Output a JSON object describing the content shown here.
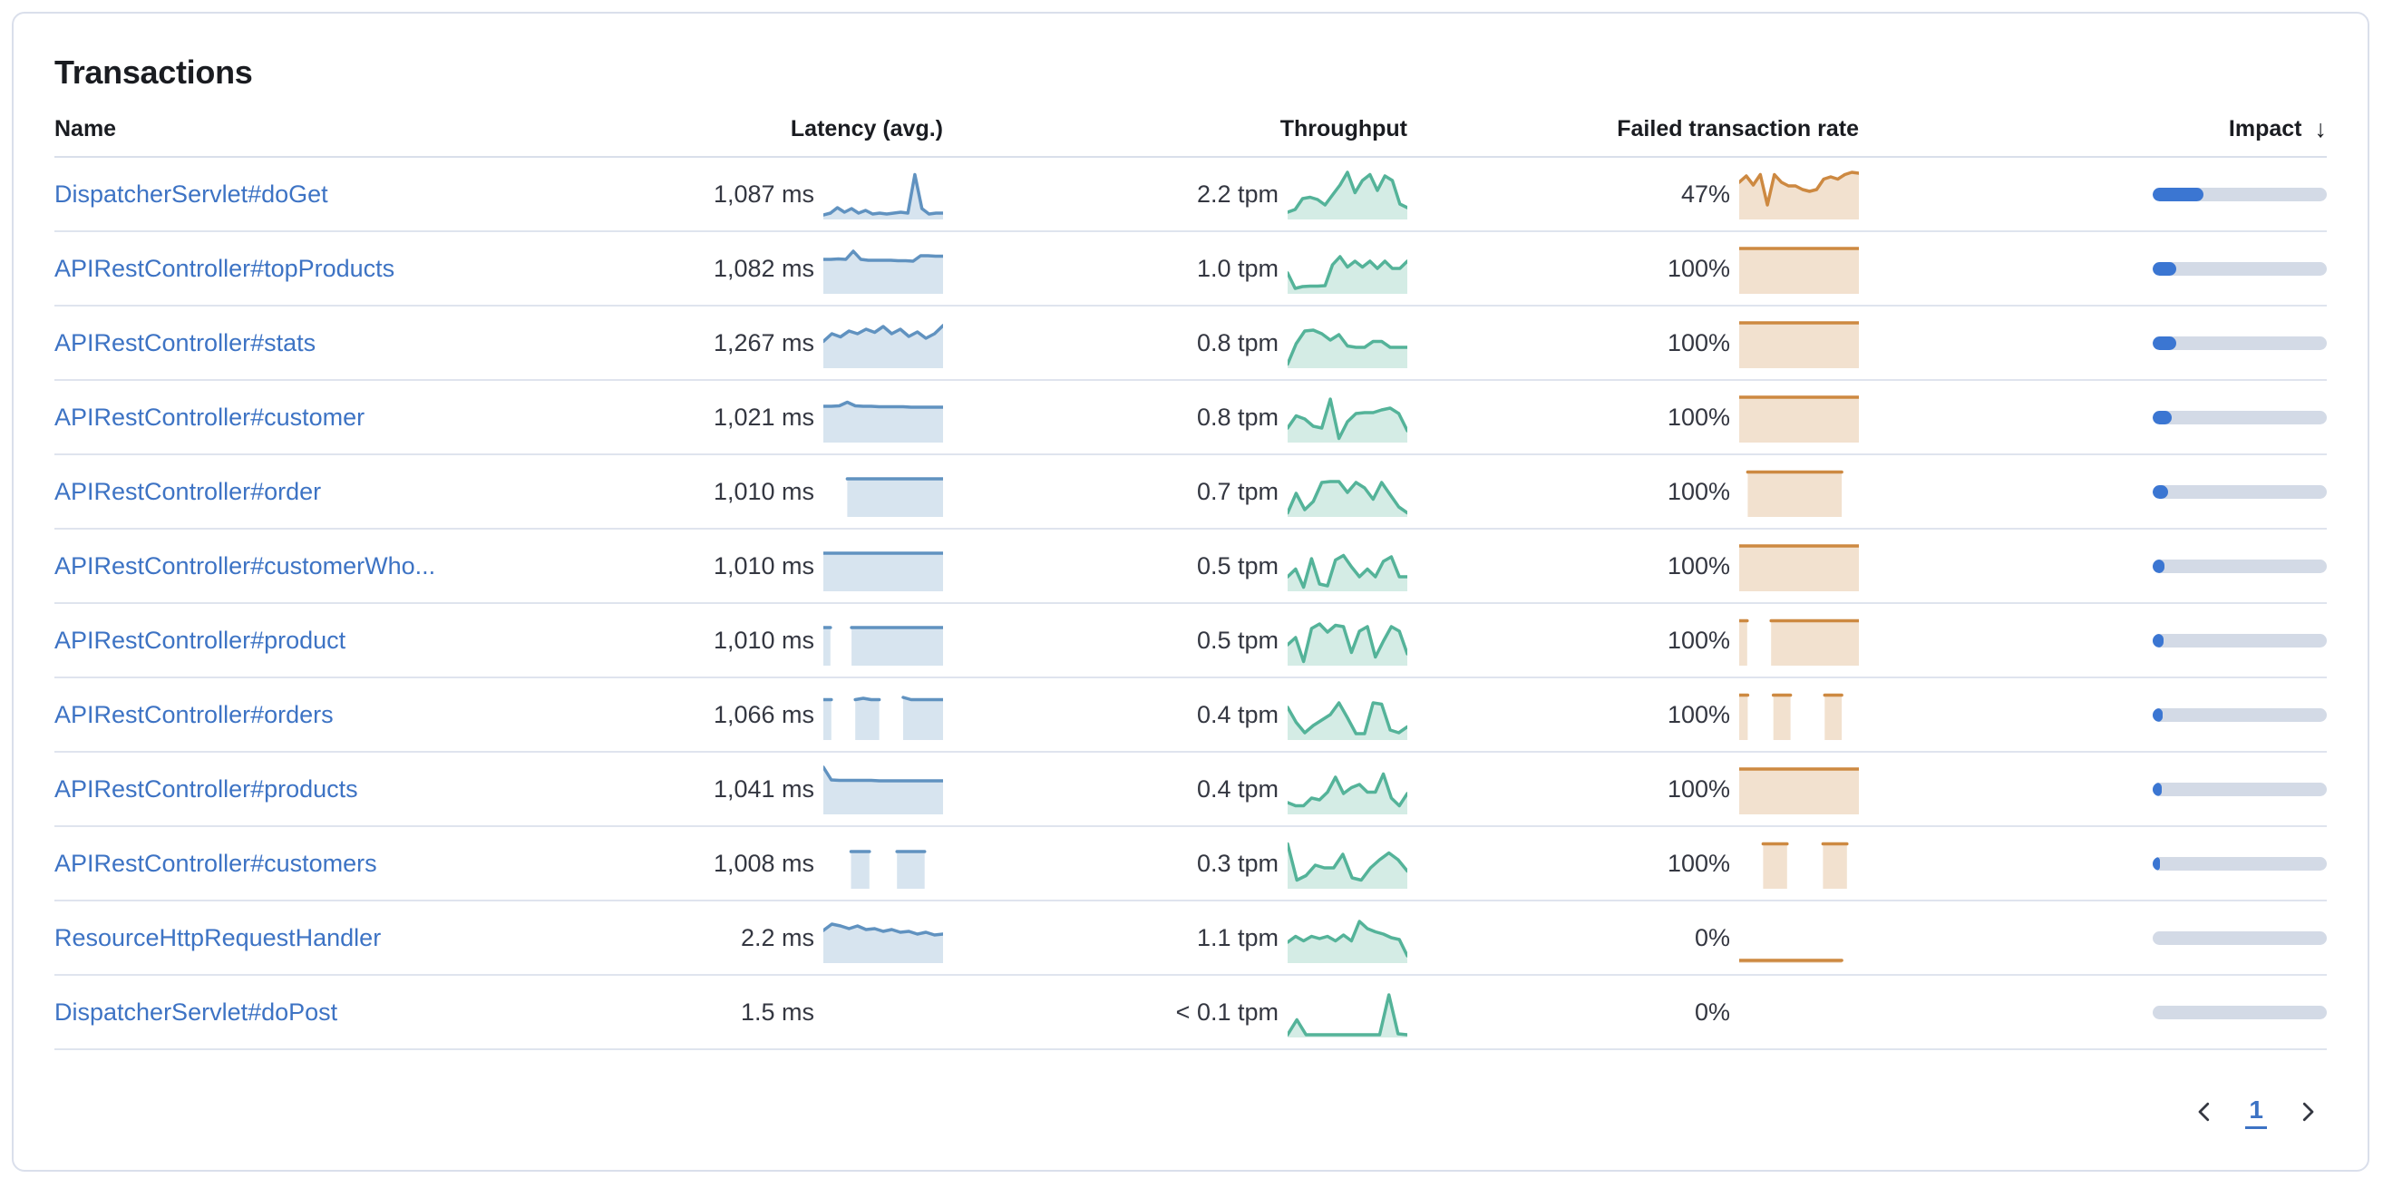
{
  "panel": {
    "title": "Transactions"
  },
  "table": {
    "columns": {
      "name": "Name",
      "latency": "Latency (avg.)",
      "throughput": "Throughput",
      "failed": "Failed transaction rate",
      "impact": "Impact",
      "sort_icon": "↓"
    },
    "rows": [
      {
        "name": "DispatcherServlet#doGet",
        "latency": "1,087 ms",
        "throughput": "2.2 tpm",
        "failed_rate": "47%",
        "impact": 0.29,
        "latency_spark": [
          0.06,
          0.1,
          0.22,
          0.12,
          0.2,
          0.1,
          0.16,
          0.08,
          0.1,
          0.08,
          0.1,
          0.12,
          0.1,
          0.95,
          0.2,
          0.08,
          0.1,
          0.1
        ],
        "throughput_spark": [
          0.12,
          0.18,
          0.42,
          0.45,
          0.4,
          0.28,
          0.5,
          0.72,
          1.0,
          0.55,
          0.82,
          0.95,
          0.6,
          0.92,
          0.82,
          0.3,
          0.22
        ],
        "failed_spark": [
          0.78,
          0.92,
          0.72,
          0.95,
          0.28,
          0.95,
          0.78,
          0.7,
          0.7,
          0.62,
          0.58,
          0.62,
          0.85,
          0.9,
          0.85,
          0.95,
          1.0,
          0.98
        ]
      },
      {
        "name": "APIRestController#topProducts",
        "latency": "1,082 ms",
        "throughput": "1.0 tpm",
        "failed_rate": "100%",
        "impact": 0.135,
        "latency_spark": [
          0.72,
          0.72,
          0.73,
          0.72,
          0.9,
          0.72,
          0.7,
          0.7,
          0.7,
          0.7,
          0.69,
          0.69,
          0.68,
          0.8,
          0.8,
          0.79,
          0.79
        ],
        "throughput_spark": [
          0.42,
          0.08,
          0.12,
          0.13,
          0.13,
          0.14,
          0.6,
          0.78,
          0.55,
          0.68,
          0.55,
          0.68,
          0.52,
          0.68,
          0.52,
          0.52,
          0.68
        ],
        "failed_spark": [
          0.96,
          0.96,
          0.96,
          0.96,
          0.96,
          0.96,
          0.96,
          0.96,
          0.96,
          0.96,
          0.96,
          0.96,
          0.96,
          0.96,
          0.96,
          0.96
        ]
      },
      {
        "name": "APIRestController#stats",
        "latency": "1,267 ms",
        "throughput": "0.8 tpm",
        "failed_rate": "100%",
        "impact": 0.135,
        "latency_spark": [
          0.55,
          0.72,
          0.65,
          0.78,
          0.72,
          0.82,
          0.75,
          0.88,
          0.72,
          0.82,
          0.66,
          0.76,
          0.62,
          0.72,
          0.9
        ],
        "throughput_spark": [
          0.05,
          0.5,
          0.78,
          0.8,
          0.72,
          0.58,
          0.7,
          0.45,
          0.42,
          0.42,
          0.55,
          0.55,
          0.42,
          0.42,
          0.42
        ],
        "failed_spark": [
          0.96,
          0.96,
          0.96,
          0.96,
          0.96,
          0.96,
          0.96,
          0.96,
          0.96,
          0.96,
          0.96,
          0.96,
          0.96,
          0.96,
          0.96,
          0.96
        ]
      },
      {
        "name": "APIRestController#customer",
        "latency": "1,021 ms",
        "throughput": "0.8 tpm",
        "failed_rate": "100%",
        "impact": 0.11,
        "latency_spark": [
          0.76,
          0.76,
          0.77,
          0.85,
          0.77,
          0.76,
          0.76,
          0.75,
          0.75,
          0.75,
          0.75,
          0.74,
          0.74,
          0.74,
          0.74,
          0.74
        ],
        "throughput_spark": [
          0.28,
          0.55,
          0.48,
          0.32,
          0.28,
          0.92,
          0.05,
          0.42,
          0.6,
          0.62,
          0.62,
          0.68,
          0.72,
          0.6,
          0.22
        ],
        "failed_spark": [
          0.96,
          0.96,
          0.96,
          0.96,
          0.96,
          0.96,
          0.96,
          0.96,
          0.96,
          0.96,
          0.96,
          0.96,
          0.96,
          0.96,
          0.96,
          0.96
        ]
      },
      {
        "name": "APIRestController#order",
        "latency": "1,010 ms",
        "throughput": "0.7 tpm",
        "failed_rate": "100%",
        "impact": 0.09,
        "latency_spark": [
          null,
          null,
          null,
          0.8,
          0.8,
          0.8,
          0.8,
          0.8,
          0.8,
          0.8,
          0.8,
          0.8,
          0.8,
          0.8,
          0.8,
          0.8
        ],
        "throughput_spark": [
          0.05,
          0.48,
          0.12,
          0.3,
          0.72,
          0.74,
          0.74,
          0.5,
          0.72,
          0.6,
          0.35,
          0.72,
          0.45,
          0.18,
          0.05
        ],
        "failed_spark": [
          null,
          0.95,
          0.95,
          0.95,
          0.95,
          0.95,
          0.95,
          0.95,
          0.95,
          0.95,
          0.95,
          0.95,
          0.95,
          null,
          null
        ]
      },
      {
        "name": "APIRestController#customerWho...",
        "latency": "1,010 ms",
        "throughput": "0.5 tpm",
        "failed_rate": "100%",
        "impact": 0.07,
        "latency_spark": [
          0.8,
          0.8,
          0.8,
          0.8,
          0.8,
          0.8,
          0.8,
          0.8,
          0.8,
          0.8,
          0.8,
          0.8,
          0.8,
          0.8,
          0.8,
          0.8
        ],
        "throughput_spark": [
          0.28,
          0.45,
          0.05,
          0.68,
          0.12,
          0.08,
          0.65,
          0.75,
          0.5,
          0.28,
          0.45,
          0.28,
          0.62,
          0.72,
          0.28,
          0.28
        ],
        "failed_spark": [
          0.96,
          0.96,
          0.96,
          0.96,
          0.96,
          0.96,
          0.96,
          0.96,
          0.96,
          0.96,
          0.96,
          0.96,
          0.96,
          0.96,
          0.96,
          0.96
        ]
      },
      {
        "name": "APIRestController#product",
        "latency": "1,010 ms",
        "throughput": "0.5 tpm",
        "failed_rate": "100%",
        "impact": 0.06,
        "latency_spark": [
          0.8,
          0.8,
          null,
          null,
          0.8,
          0.8,
          0.8,
          0.8,
          0.8,
          0.8,
          0.8,
          0.8,
          0.8,
          0.8,
          0.8,
          0.8,
          0.8,
          0.8
        ],
        "throughput_spark": [
          0.42,
          0.58,
          0.05,
          0.78,
          0.88,
          0.7,
          0.85,
          0.82,
          0.25,
          0.72,
          0.82,
          0.15,
          0.5,
          0.82,
          0.72,
          0.22
        ],
        "failed_spark": [
          0.95,
          0.95,
          null,
          null,
          0.95,
          0.95,
          0.95,
          0.95,
          0.95,
          0.95,
          0.95,
          0.95,
          0.95,
          0.95,
          0.95,
          0.95
        ]
      },
      {
        "name": "APIRestController#orders",
        "latency": "1,066 ms",
        "throughput": "0.4 tpm",
        "failed_rate": "100%",
        "impact": 0.055,
        "latency_spark": [
          0.85,
          0.85,
          null,
          null,
          0.85,
          0.88,
          0.85,
          0.85,
          null,
          null,
          0.9,
          0.85,
          0.85,
          0.85,
          0.85,
          0.85
        ],
        "throughput_spark": [
          0.68,
          0.35,
          0.12,
          0.28,
          0.4,
          0.52,
          0.78,
          0.45,
          0.1,
          0.1,
          0.78,
          0.75,
          0.18,
          0.12,
          0.25
        ],
        "failed_spark": [
          0.95,
          0.95,
          null,
          null,
          0.95,
          0.95,
          0.95,
          null,
          null,
          null,
          0.95,
          0.95,
          0.95,
          null,
          null
        ]
      },
      {
        "name": "APIRestController#products",
        "latency": "1,041 ms",
        "throughput": "0.4 tpm",
        "failed_rate": "100%",
        "impact": 0.05,
        "latency_spark": [
          1.0,
          0.72,
          0.71,
          0.71,
          0.71,
          0.71,
          0.71,
          0.7,
          0.7,
          0.7,
          0.7,
          0.7,
          0.7,
          0.7,
          0.7,
          0.7
        ],
        "throughput_spark": [
          0.22,
          0.15,
          0.15,
          0.32,
          0.28,
          0.45,
          0.78,
          0.42,
          0.55,
          0.62,
          0.45,
          0.45,
          0.85,
          0.32,
          0.15,
          0.42
        ],
        "failed_spark": [
          0.96,
          0.96,
          0.96,
          0.96,
          0.96,
          0.96,
          0.96,
          0.96,
          0.96,
          0.96,
          0.96,
          0.96,
          0.96,
          0.96,
          0.96,
          0.96
        ]
      },
      {
        "name": "APIRestController#customers",
        "latency": "1,008 ms",
        "throughput": "0.3 tpm",
        "failed_rate": "100%",
        "impact": 0.04,
        "latency_spark": [
          null,
          null,
          null,
          0.78,
          0.78,
          0.78,
          null,
          null,
          0.78,
          0.78,
          0.78,
          0.78,
          null,
          null
        ],
        "throughput_spark": [
          0.95,
          0.15,
          0.25,
          0.48,
          0.42,
          0.42,
          0.72,
          0.2,
          0.15,
          0.42,
          0.6,
          0.75,
          0.6,
          0.35
        ],
        "failed_spark": [
          null,
          null,
          0.95,
          0.95,
          0.95,
          null,
          null,
          0.95,
          0.95,
          0.95,
          null
        ]
      },
      {
        "name": "ResourceHttpRequestHandler",
        "latency": "2.2 ms",
        "throughput": "1.1 tpm",
        "failed_rate": "0%",
        "impact": 0,
        "latency_spark": [
          0.68,
          0.82,
          0.78,
          0.72,
          0.78,
          0.7,
          0.72,
          0.66,
          0.7,
          0.64,
          0.66,
          0.6,
          0.64,
          0.58,
          0.6
        ],
        "throughput_spark": [
          0.42,
          0.55,
          0.45,
          0.55,
          0.5,
          0.55,
          0.45,
          0.58,
          0.45,
          0.88,
          0.72,
          0.65,
          0.6,
          0.52,
          0.48,
          0.12
        ],
        "failed_spark": [
          0.02,
          0.02,
          0.02,
          0.02,
          0.02,
          0.02,
          0.02,
          0.02,
          0.02,
          0.02,
          0.02,
          0.02,
          0.02,
          null,
          null
        ]
      },
      {
        "name": "DispatcherServlet#doPost",
        "latency": "1.5 ms",
        "throughput": "< 0.1 tpm",
        "failed_rate": "0%",
        "impact": 0,
        "latency_spark": [],
        "throughput_spark": [
          0.02,
          0.35,
          0.02,
          0.02,
          0.02,
          0.02,
          0.02,
          0.02,
          0.02,
          0.02,
          0.02,
          0.9,
          0.04,
          0.02
        ],
        "failed_spark": []
      }
    ]
  },
  "pagination": {
    "current": "1"
  },
  "colors": {
    "latency": "#6092c0",
    "throughput": "#54b399",
    "failed": "#cd8941",
    "impact_fill": "#3b76d2",
    "impact_track": "#d3dae6",
    "link": "#3d73c4"
  }
}
